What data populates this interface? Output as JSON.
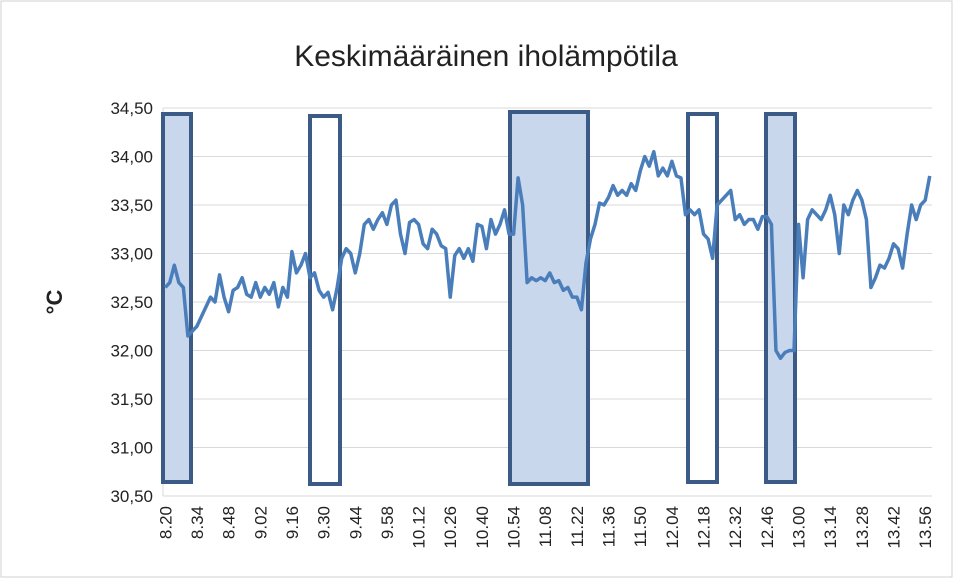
{
  "chart_data": {
    "type": "line",
    "title": "Keskimääräinen iholämpötila",
    "y_label": "°C",
    "categories": [
      "8.20",
      null,
      null,
      null,
      null,
      null,
      null,
      "8.34",
      null,
      null,
      null,
      null,
      null,
      null,
      "8.48",
      null,
      null,
      null,
      null,
      null,
      null,
      "9.02",
      null,
      null,
      null,
      null,
      null,
      null,
      "9.16",
      null,
      null,
      null,
      null,
      null,
      null,
      "9.30",
      null,
      null,
      null,
      null,
      null,
      null,
      "9.44",
      null,
      null,
      null,
      null,
      null,
      null,
      "9.58",
      null,
      null,
      null,
      null,
      null,
      null,
      "10.12",
      null,
      null,
      null,
      null,
      null,
      null,
      "10.26",
      null,
      null,
      null,
      null,
      null,
      null,
      "10.40",
      null,
      null,
      null,
      null,
      null,
      null,
      "10.54",
      null,
      null,
      null,
      null,
      null,
      null,
      "11.08",
      null,
      null,
      null,
      null,
      null,
      null,
      "11.22",
      null,
      null,
      null,
      null,
      null,
      null,
      "11.36",
      null,
      null,
      null,
      null,
      null,
      null,
      "11.50",
      null,
      null,
      null,
      null,
      null,
      null,
      "12.04",
      null,
      null,
      null,
      null,
      null,
      null,
      "12.18",
      null,
      null,
      null,
      null,
      null,
      null,
      "12.32",
      null,
      null,
      null,
      null,
      null,
      null,
      "12.46",
      null,
      null,
      null,
      null,
      null,
      null,
      "13.00",
      null,
      null,
      null,
      null,
      null,
      null,
      "13.14",
      null,
      null,
      null,
      null,
      null,
      null,
      "13.28",
      null,
      null,
      null,
      null,
      null,
      null,
      "13.42",
      null,
      null,
      null,
      null,
      null,
      null,
      "13.56",
      null
    ],
    "values": [
      32.65,
      32.7,
      32.88,
      32.7,
      32.65,
      32.15,
      32.2,
      32.25,
      32.35,
      32.45,
      32.55,
      32.5,
      32.78,
      32.55,
      32.4,
      32.62,
      32.65,
      32.75,
      32.58,
      32.55,
      32.7,
      32.55,
      32.65,
      32.58,
      32.7,
      32.45,
      32.65,
      32.55,
      33.02,
      32.8,
      32.88,
      33.0,
      32.75,
      32.8,
      32.62,
      32.55,
      32.6,
      32.42,
      32.65,
      32.95,
      33.05,
      33.0,
      32.8,
      33.0,
      33.3,
      33.35,
      33.25,
      33.35,
      33.42,
      33.3,
      33.5,
      33.55,
      33.2,
      33.0,
      33.32,
      33.35,
      33.3,
      33.1,
      33.05,
      33.25,
      33.2,
      33.08,
      33.05,
      32.55,
      32.98,
      33.05,
      32.95,
      33.05,
      32.92,
      33.3,
      33.28,
      33.05,
      33.35,
      33.2,
      33.3,
      33.45,
      33.2,
      33.2,
      33.78,
      33.5,
      32.7,
      32.75,
      32.72,
      32.75,
      32.72,
      32.8,
      32.7,
      32.72,
      32.62,
      32.65,
      32.55,
      32.55,
      32.42,
      32.9,
      33.15,
      33.3,
      33.52,
      33.5,
      33.58,
      33.7,
      33.6,
      33.65,
      33.6,
      33.72,
      33.65,
      33.85,
      34.0,
      33.9,
      34.05,
      33.8,
      33.88,
      33.8,
      33.95,
      33.8,
      33.78,
      33.4,
      33.45,
      33.4,
      33.45,
      33.2,
      33.15,
      32.95,
      33.5,
      33.55,
      33.6,
      33.65,
      33.35,
      33.4,
      33.3,
      33.35,
      33.35,
      33.25,
      33.38,
      33.38,
      33.3,
      32.0,
      31.92,
      31.98,
      32.0,
      32.0,
      33.3,
      32.75,
      33.35,
      33.45,
      33.4,
      33.35,
      33.45,
      33.6,
      33.4,
      33.0,
      33.5,
      33.4,
      33.55,
      33.65,
      33.55,
      33.35,
      32.65,
      32.75,
      32.88,
      32.85,
      32.95,
      33.1,
      33.05,
      32.85,
      33.2,
      33.5,
      33.35,
      33.5,
      33.55,
      33.8
    ],
    "color": "#4a7ebb",
    "ylim": [
      30.5,
      34.5
    ],
    "yticks": [
      {
        "value": 30.5,
        "label": "30,50"
      },
      {
        "value": 31,
        "label": "31,00"
      },
      {
        "value": 31.5,
        "label": "31,50"
      },
      {
        "value": 32,
        "label": "32,00"
      },
      {
        "value": 32.5,
        "label": "32,50"
      },
      {
        "value": 33,
        "label": "33,00"
      },
      {
        "value": 33.5,
        "label": "33,50"
      },
      {
        "value": 34,
        "label": "34,00"
      },
      {
        "value": 34.5,
        "label": "34,50"
      }
    ],
    "grid": true
  }
}
